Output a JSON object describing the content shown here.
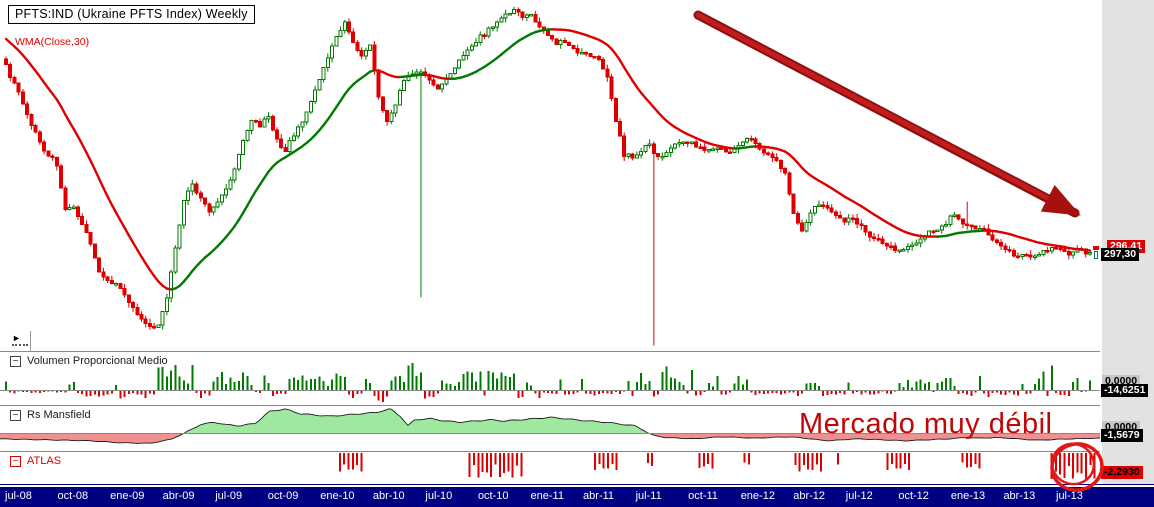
{
  "header": {
    "title": "PFTS:IND (Ukraine PFTS Index) Weekly",
    "indicator_label": "WMA(Close,30)"
  },
  "icons": {
    "collapse": "−",
    "scroll_right": "►"
  },
  "price_labels": {
    "wma": "296,41",
    "close": "297,30"
  },
  "panels": [
    {
      "id": "volume",
      "label": "Volumen Proporcional Medio",
      "zero_label": "0,0000",
      "value_label": "-14,6251"
    },
    {
      "id": "mansfield",
      "label": "Rs Mansfield",
      "zero_label": "0,0000",
      "value_label": "-1,5679"
    },
    {
      "id": "atlas",
      "label": "ATLAS",
      "value_label": "-2,2930"
    }
  ],
  "annotations": {
    "weak_market_text": "Mercado muy débil"
  },
  "x_axis": {
    "labels": [
      "jul-08",
      "oct-08",
      "ene-09",
      "abr-09",
      "jul-09",
      "oct-09",
      "ene-10",
      "abr-10",
      "jul-10",
      "oct-10",
      "ene-11",
      "abr-11",
      "jul-11",
      "oct-11",
      "ene-12",
      "abr-12",
      "jul-12",
      "oct-12",
      "ene-13",
      "abr-13",
      "jul-13"
    ]
  },
  "colors": {
    "up": "#007a00",
    "down": "#de0000",
    "ma_up": "#007a00",
    "ma_down": "#e00000",
    "mansfield_pos": "#9fe89f",
    "mansfield_neg": "#f19090",
    "outline": "#1c1c1c",
    "zero_line": "#8a8a8a",
    "annotation_red": "#a81010",
    "circle_red": "#e01818",
    "axis_bg": "#000082",
    "strip_bg": "#e2e2e2"
  },
  "chart_data": {
    "type": "candlestick",
    "symbol": "PFTS:IND",
    "name": "Ukraine PFTS Index",
    "timeframe": "Weekly",
    "x_range": [
      "jul-08",
      "sep-13"
    ],
    "price_axis_estimate": [
      155,
      665
    ],
    "last_close": 297.3,
    "last_wma": 296.41,
    "wma_period": 30,
    "ma_warmup": [
      656,
      648,
      640,
      632,
      624,
      616,
      608,
      600,
      592,
      584,
      576
    ],
    "price": {
      "note": "weekly closes, uniformly spaced jul-08..sep-13, values estimated from chart",
      "closes": [
        569,
        542,
        513,
        483,
        461,
        440,
        426,
        361,
        366,
        339,
        310,
        269,
        258,
        252,
        237,
        216,
        201,
        189,
        192,
        233,
        304,
        376,
        397,
        376,
        358,
        369,
        393,
        419,
        461,
        490,
        483,
        497,
        461,
        447,
        469,
        490,
        519,
        547,
        583,
        612,
        633,
        604,
        583,
        597,
        526,
        490,
        512,
        547,
        559,
        562,
        547,
        536,
        550,
        569,
        583,
        597,
        612,
        622,
        633,
        645,
        650,
        640,
        645,
        626,
        612,
        602,
        604,
        593,
        587,
        583,
        579,
        554,
        490,
        440,
        433,
        447,
        454,
        436,
        444,
        454,
        461,
        459,
        450,
        447,
        450,
        444,
        450,
        457,
        464,
        450,
        440,
        430,
        411,
        354,
        330,
        354,
        369,
        364,
        354,
        344,
        350,
        336,
        321,
        316,
        307,
        301,
        304,
        308,
        318,
        328,
        333,
        340,
        354,
        340,
        336,
        333,
        324,
        313,
        301,
        293,
        297,
        290,
        295,
        301,
        304,
        297,
        300,
        301,
        297
      ]
    },
    "special_wicks": [
      {
        "f": 0.383,
        "low": 233
      },
      {
        "f": 0.597,
        "low": 163
      },
      {
        "f": 0.887,
        "high": 372
      }
    ],
    "volume_envelope": {
      "t": [
        0,
        0.06,
        0.09,
        0.12,
        0.15,
        0.19,
        0.24,
        0.3,
        0.355,
        0.37,
        0.41,
        0.44,
        0.47,
        0.52,
        0.57,
        0.6,
        0.62,
        0.66,
        0.7,
        0.74,
        0.76,
        0.8,
        0.85,
        0.895,
        0.93,
        0.955,
        0.98,
        1
      ],
      "m": [
        0.3,
        0.35,
        0.85,
        0.5,
        0.95,
        0.55,
        0.5,
        0.45,
        1.0,
        0.9,
        0.5,
        0.65,
        0.7,
        0.5,
        0.35,
        0.9,
        0.7,
        0.4,
        0.45,
        0.5,
        0.6,
        0.35,
        0.3,
        0.6,
        0.5,
        0.9,
        0.5,
        0.4
      ]
    },
    "mansfield": {
      "t": [
        0,
        0.027,
        0.055,
        0.082,
        0.109,
        0.136,
        0.155,
        0.168,
        0.182,
        0.195,
        0.205,
        0.218,
        0.232,
        0.245,
        0.259,
        0.273,
        0.286,
        0.3,
        0.314,
        0.327,
        0.341,
        0.355,
        0.364,
        0.371,
        0.377,
        0.391,
        0.405,
        0.418,
        0.432,
        0.445,
        0.459,
        0.473,
        0.486,
        0.5,
        0.514,
        0.523,
        0.536,
        0.55,
        0.559,
        0.568,
        0.577,
        0.586,
        0.595,
        0.605,
        0.618,
        0.632,
        0.645,
        0.659,
        0.673,
        0.686,
        0.7,
        0.714,
        0.727,
        0.741,
        0.755,
        0.768,
        0.782,
        0.795,
        0.809,
        0.823,
        0.836,
        0.85,
        0.864,
        0.877,
        0.891,
        0.905,
        0.918,
        0.932,
        0.945,
        0.959,
        0.973,
        0.986,
        1
      ],
      "v": [
        -0.45,
        -0.5,
        -0.55,
        -0.6,
        -0.75,
        -0.8,
        -0.5,
        0,
        0.35,
        0.45,
        0.35,
        0.3,
        0.4,
        0.9,
        1.0,
        0.8,
        0.75,
        0.7,
        0.75,
        0.8,
        0.85,
        1.0,
        0.7,
        0.3,
        0.55,
        0.6,
        0.5,
        0.45,
        0.5,
        0.55,
        0.5,
        0.55,
        0.6,
        0.65,
        0.6,
        0.55,
        0.5,
        0.45,
        0.4,
        0.35,
        0.3,
        0.1,
        -0.2,
        -0.35,
        -0.4,
        -0.45,
        -0.35,
        -0.3,
        -0.35,
        -0.4,
        -0.35,
        -0.3,
        -0.35,
        -0.5,
        -0.6,
        -0.5,
        -0.45,
        -0.5,
        -0.55,
        -0.6,
        -0.55,
        -0.5,
        -0.45,
        -0.35,
        -0.4,
        -0.35,
        -0.4,
        -0.5,
        -0.55,
        -0.5,
        -0.45,
        -0.42,
        -0.4
      ]
    },
    "atlas_clusters": [
      [
        0.309,
        6,
        0.55
      ],
      [
        0.427,
        13,
        0.8
      ],
      [
        0.541,
        6,
        0.5
      ],
      [
        0.589,
        2,
        0.35
      ],
      [
        0.636,
        4,
        0.45
      ],
      [
        0.677,
        2,
        0.3
      ],
      [
        0.723,
        7,
        0.55
      ],
      [
        0.762,
        1,
        0.3
      ],
      [
        0.807,
        6,
        0.5
      ],
      [
        0.875,
        5,
        0.45
      ],
      [
        0.956,
        11,
        0.85
      ]
    ]
  }
}
